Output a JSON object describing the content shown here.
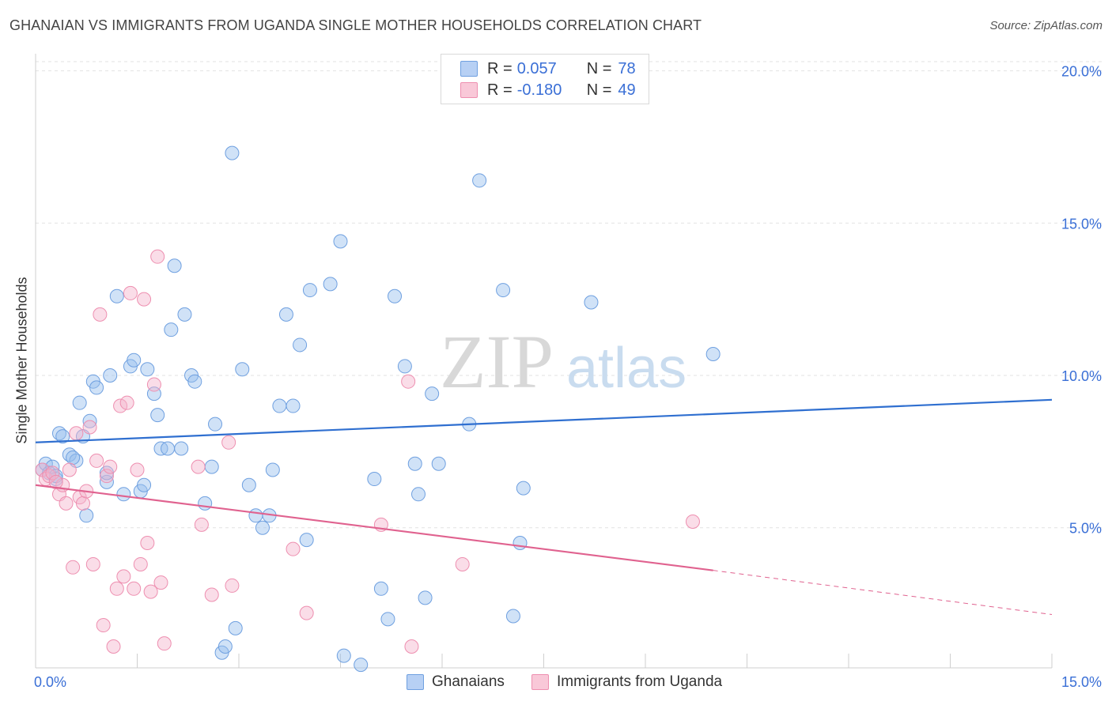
{
  "title": "GHANAIAN VS IMMIGRANTS FROM UGANDA SINGLE MOTHER HOUSEHOLDS CORRELATION CHART",
  "source": "Source: ZipAtlas.com",
  "watermark": {
    "zip": "ZIP",
    "atlas": "atlas"
  },
  "legend": {
    "rows": [
      {
        "r_label": "R =",
        "r_value": "0.057",
        "n_label": "N =",
        "n_value": "78",
        "color": "#6fa0e0"
      },
      {
        "r_label": "R =",
        "r_value": "-0.180",
        "n_label": "N =",
        "n_value": "49",
        "color": "#ee8fb0"
      }
    ]
  },
  "bottom_legend": [
    {
      "label": "Ghanaians",
      "color": "#6fa0e0"
    },
    {
      "label": "Immigrants from Uganda",
      "color": "#ee8fb0"
    }
  ],
  "chart_data": {
    "type": "scatter",
    "xlabel": "",
    "ylabel": "Single Mother Households",
    "xlim": [
      0,
      15
    ],
    "ylim": [
      0.4,
      20.3
    ],
    "x_tick_labels": [
      {
        "value": 0,
        "label": "0.0%"
      },
      {
        "value": 15,
        "label": "15.0%"
      }
    ],
    "y_tick_labels": [
      {
        "value": 5,
        "label": "5.0%"
      },
      {
        "value": 10,
        "label": "10.0%"
      },
      {
        "value": 15,
        "label": "15.0%"
      },
      {
        "value": 20,
        "label": "20.0%"
      }
    ],
    "grid": true,
    "legend_position": "top-center",
    "series": [
      {
        "name": "Ghanaians",
        "color": "#6fa0e0",
        "points": [
          [
            0.1,
            6.9
          ],
          [
            0.15,
            7.1
          ],
          [
            0.2,
            6.8
          ],
          [
            0.25,
            7.0
          ],
          [
            0.3,
            6.6
          ],
          [
            0.35,
            8.1
          ],
          [
            0.4,
            8.0
          ],
          [
            0.5,
            7.4
          ],
          [
            0.6,
            7.2
          ],
          [
            0.65,
            9.1
          ],
          [
            0.7,
            8.0
          ],
          [
            0.75,
            5.4
          ],
          [
            0.8,
            8.5
          ],
          [
            0.85,
            9.8
          ],
          [
            0.9,
            9.6
          ],
          [
            1.05,
            6.5
          ],
          [
            1.1,
            10.0
          ],
          [
            1.2,
            12.6
          ],
          [
            1.3,
            6.1
          ],
          [
            1.4,
            10.3
          ],
          [
            1.45,
            10.5
          ],
          [
            1.55,
            6.2
          ],
          [
            1.65,
            10.2
          ],
          [
            1.75,
            9.4
          ],
          [
            1.8,
            8.7
          ],
          [
            1.85,
            7.6
          ],
          [
            1.95,
            7.6
          ],
          [
            2.0,
            11.5
          ],
          [
            2.05,
            13.6
          ],
          [
            2.15,
            7.6
          ],
          [
            2.2,
            12.0
          ],
          [
            2.3,
            10.0
          ],
          [
            2.35,
            9.8
          ],
          [
            2.5,
            5.8
          ],
          [
            2.6,
            7.0
          ],
          [
            2.65,
            8.4
          ],
          [
            2.75,
            0.9
          ],
          [
            2.8,
            1.1
          ],
          [
            2.9,
            17.3
          ],
          [
            2.95,
            1.7
          ],
          [
            3.05,
            10.2
          ],
          [
            3.15,
            6.4
          ],
          [
            3.25,
            5.4
          ],
          [
            3.35,
            5.0
          ],
          [
            3.45,
            5.4
          ],
          [
            3.5,
            6.9
          ],
          [
            3.6,
            9.0
          ],
          [
            3.7,
            12.0
          ],
          [
            3.8,
            9.0
          ],
          [
            3.9,
            11.0
          ],
          [
            4.0,
            4.6
          ],
          [
            4.05,
            12.8
          ],
          [
            4.35,
            13.0
          ],
          [
            4.5,
            14.4
          ],
          [
            4.55,
            0.8
          ],
          [
            4.8,
            0.5
          ],
          [
            5.0,
            6.6
          ],
          [
            5.1,
            3.0
          ],
          [
            5.2,
            2.0
          ],
          [
            5.3,
            12.6
          ],
          [
            5.45,
            10.3
          ],
          [
            5.6,
            7.1
          ],
          [
            5.65,
            6.1
          ],
          [
            5.75,
            2.7
          ],
          [
            5.85,
            9.4
          ],
          [
            5.95,
            7.1
          ],
          [
            6.4,
            8.4
          ],
          [
            6.55,
            16.4
          ],
          [
            6.9,
            12.8
          ],
          [
            7.05,
            2.1
          ],
          [
            7.15,
            4.5
          ],
          [
            7.2,
            6.3
          ],
          [
            8.2,
            12.4
          ],
          [
            10.0,
            10.7
          ],
          [
            0.3,
            6.7
          ],
          [
            1.05,
            6.8
          ],
          [
            0.55,
            7.3
          ],
          [
            1.6,
            6.4
          ]
        ]
      },
      {
        "name": "Immigrants from Uganda",
        "color": "#ee8fb0",
        "points": [
          [
            0.1,
            6.9
          ],
          [
            0.15,
            6.6
          ],
          [
            0.2,
            6.7
          ],
          [
            0.25,
            6.8
          ],
          [
            0.35,
            6.1
          ],
          [
            0.45,
            5.8
          ],
          [
            0.5,
            6.9
          ],
          [
            0.55,
            3.7
          ],
          [
            0.6,
            8.1
          ],
          [
            0.65,
            6.0
          ],
          [
            0.7,
            5.8
          ],
          [
            0.75,
            6.2
          ],
          [
            0.8,
            8.3
          ],
          [
            0.85,
            3.8
          ],
          [
            0.9,
            7.2
          ],
          [
            0.95,
            12.0
          ],
          [
            1.0,
            1.8
          ],
          [
            1.05,
            6.7
          ],
          [
            1.1,
            7.0
          ],
          [
            1.15,
            1.1
          ],
          [
            1.2,
            3.0
          ],
          [
            1.25,
            9.0
          ],
          [
            1.3,
            3.4
          ],
          [
            1.35,
            9.1
          ],
          [
            1.4,
            12.7
          ],
          [
            1.45,
            3.0
          ],
          [
            1.5,
            6.9
          ],
          [
            1.55,
            3.8
          ],
          [
            1.6,
            12.5
          ],
          [
            1.65,
            4.5
          ],
          [
            1.7,
            2.9
          ],
          [
            1.75,
            9.7
          ],
          [
            1.8,
            13.9
          ],
          [
            1.85,
            3.2
          ],
          [
            1.9,
            1.2
          ],
          [
            2.4,
            7.0
          ],
          [
            2.45,
            5.1
          ],
          [
            2.6,
            2.8
          ],
          [
            2.85,
            7.8
          ],
          [
            2.9,
            3.1
          ],
          [
            3.8,
            4.3
          ],
          [
            4.0,
            2.2
          ],
          [
            5.1,
            5.1
          ],
          [
            5.5,
            9.8
          ],
          [
            5.55,
            1.1
          ],
          [
            6.3,
            3.8
          ],
          [
            9.7,
            5.2
          ],
          [
            0.4,
            6.4
          ],
          [
            0.3,
            6.5
          ]
        ]
      }
    ],
    "trendlines": [
      {
        "series": "Ghanaians",
        "x": [
          0,
          15
        ],
        "y": [
          7.8,
          9.2
        ],
        "style": "solid"
      },
      {
        "series": "Immigrants from Uganda",
        "x": [
          0,
          10.0
        ],
        "y": [
          6.4,
          3.6
        ],
        "style": "solid"
      },
      {
        "series": "Immigrants from Uganda",
        "x": [
          10.0,
          15
        ],
        "y": [
          3.6,
          2.15
        ],
        "style": "dashed"
      }
    ]
  }
}
